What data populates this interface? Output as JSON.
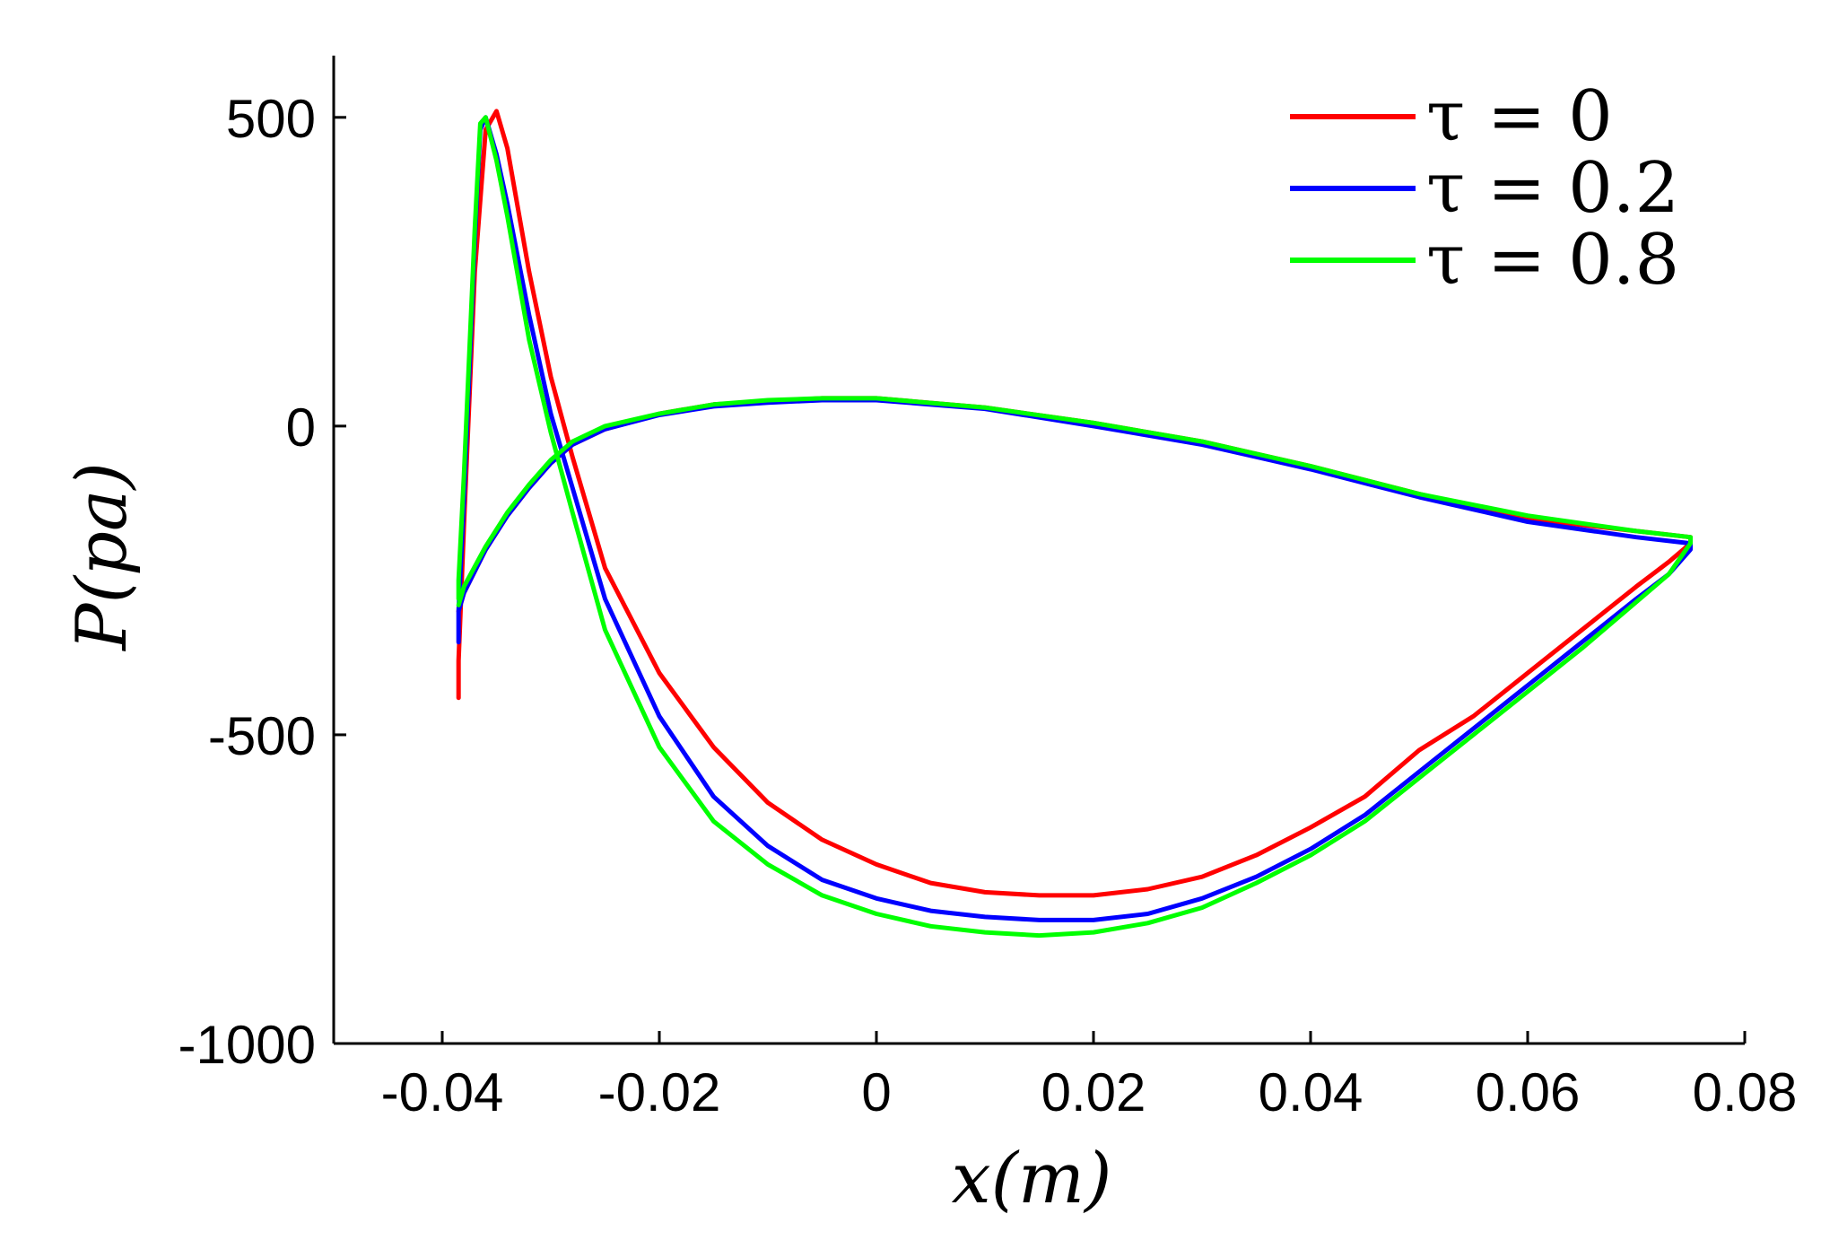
{
  "chart_data": {
    "type": "line",
    "xlabel": "x(m)",
    "ylabel": "P(pa)",
    "xlim": [
      -0.05,
      0.08
    ],
    "ylim": [
      -1000,
      600
    ],
    "xticks": [
      -0.04,
      -0.02,
      0,
      0.02,
      0.04,
      0.06,
      0.08
    ],
    "xtick_labels": [
      "-0.04",
      "-0.02",
      "0",
      "0.02",
      "0.04",
      "0.06",
      "0.08"
    ],
    "yticks": [
      500,
      0,
      -500,
      -1000
    ],
    "ytick_labels": [
      "500",
      "0",
      "-500",
      "-1000"
    ],
    "grid": false,
    "legend_position": "top-right",
    "series": [
      {
        "name": "τ = 0",
        "color": "#ff0000",
        "x": [
          -0.0385,
          -0.0385,
          -0.038,
          -0.037,
          -0.036,
          -0.035,
          -0.034,
          -0.032,
          -0.03,
          -0.028,
          -0.025,
          -0.02,
          -0.015,
          -0.01,
          -0.005,
          0.0,
          0.005,
          0.01,
          0.015,
          0.02,
          0.025,
          0.03,
          0.035,
          0.04,
          0.045,
          0.05,
          0.055,
          0.06,
          0.065,
          0.07,
          0.073,
          0.075,
          0.075,
          0.07,
          0.06,
          0.05,
          0.04,
          0.03,
          0.02,
          0.01,
          0.0,
          -0.005,
          -0.01,
          -0.015,
          -0.02,
          -0.025,
          -0.028,
          -0.03,
          -0.032,
          -0.034,
          -0.036,
          -0.038,
          -0.0385
        ],
        "y": [
          -440,
          -380,
          -160,
          250,
          480,
          510,
          450,
          250,
          80,
          -50,
          -230,
          -400,
          -520,
          -610,
          -670,
          -710,
          -740,
          -755,
          -760,
          -760,
          -750,
          -730,
          -695,
          -650,
          -600,
          -525,
          -470,
          -400,
          -330,
          -260,
          -220,
          -190,
          -180,
          -170,
          -150,
          -110,
          -65,
          -25,
          5,
          30,
          45,
          45,
          40,
          35,
          20,
          -5,
          -30,
          -60,
          -100,
          -145,
          -200,
          -270,
          -300
        ]
      },
      {
        "name": "τ = 0.2",
        "color": "#0000ff",
        "x": [
          -0.0385,
          -0.0385,
          -0.038,
          -0.037,
          -0.0365,
          -0.036,
          -0.035,
          -0.034,
          -0.032,
          -0.03,
          -0.028,
          -0.025,
          -0.02,
          -0.015,
          -0.01,
          -0.005,
          0.0,
          0.005,
          0.01,
          0.015,
          0.02,
          0.025,
          0.03,
          0.035,
          0.04,
          0.045,
          0.05,
          0.055,
          0.06,
          0.065,
          0.07,
          0.073,
          0.075,
          0.075,
          0.07,
          0.06,
          0.05,
          0.04,
          0.03,
          0.02,
          0.01,
          0.0,
          -0.005,
          -0.01,
          -0.015,
          -0.02,
          -0.025,
          -0.028,
          -0.03,
          -0.032,
          -0.034,
          -0.036,
          -0.038,
          -0.0385
        ],
        "y": [
          -350,
          -300,
          -120,
          300,
          480,
          500,
          440,
          360,
          180,
          20,
          -100,
          -280,
          -470,
          -600,
          -680,
          -735,
          -765,
          -785,
          -795,
          -800,
          -800,
          -790,
          -765,
          -730,
          -685,
          -630,
          -560,
          -490,
          -420,
          -350,
          -280,
          -240,
          -200,
          -190,
          -180,
          -155,
          -115,
          -70,
          -30,
          0,
          28,
          42,
          42,
          38,
          32,
          18,
          -5,
          -30,
          -60,
          -100,
          -145,
          -200,
          -270,
          -300
        ]
      },
      {
        "name": "τ = 0.8",
        "color": "#00ff00",
        "x": [
          -0.0385,
          -0.0385,
          -0.038,
          -0.037,
          -0.0365,
          -0.036,
          -0.035,
          -0.034,
          -0.032,
          -0.03,
          -0.028,
          -0.025,
          -0.02,
          -0.015,
          -0.01,
          -0.005,
          0.0,
          0.005,
          0.01,
          0.015,
          0.02,
          0.025,
          0.03,
          0.035,
          0.04,
          0.045,
          0.05,
          0.055,
          0.06,
          0.065,
          0.07,
          0.073,
          0.075,
          0.075,
          0.07,
          0.06,
          0.05,
          0.04,
          0.03,
          0.02,
          0.01,
          0.0,
          -0.005,
          -0.01,
          -0.015,
          -0.02,
          -0.025,
          -0.028,
          -0.03,
          -0.032,
          -0.034,
          -0.036,
          -0.038,
          -0.0385
        ],
        "y": [
          -280,
          -250,
          -80,
          320,
          490,
          500,
          430,
          340,
          140,
          -10,
          -140,
          -330,
          -520,
          -640,
          -710,
          -760,
          -790,
          -810,
          -820,
          -825,
          -820,
          -805,
          -780,
          -740,
          -695,
          -640,
          -570,
          -500,
          -430,
          -360,
          -285,
          -240,
          -190,
          -180,
          -170,
          -145,
          -110,
          -65,
          -25,
          5,
          30,
          45,
          45,
          42,
          35,
          20,
          0,
          -25,
          -55,
          -95,
          -140,
          -195,
          -260,
          -290
        ]
      }
    ]
  }
}
